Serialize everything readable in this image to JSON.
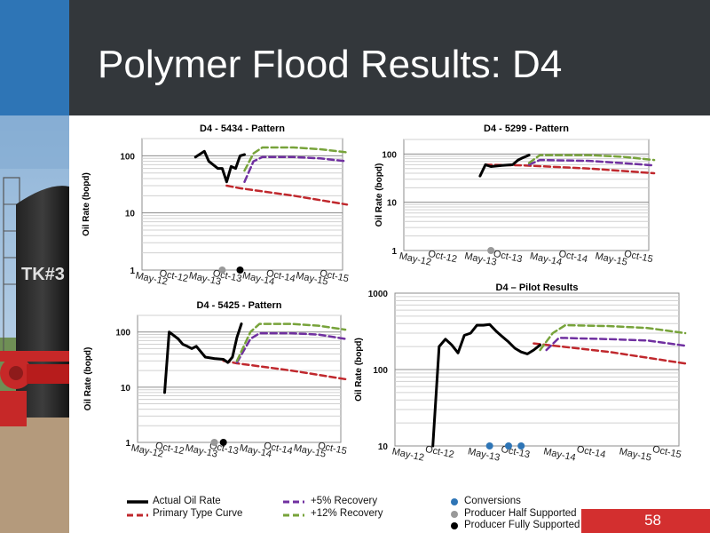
{
  "slide": {
    "title": "Polymer Flood Results: D4",
    "slide_number": "58",
    "photo_text": "TK#3"
  },
  "legend": {
    "actual": "Actual Oil Rate",
    "primary": "Primary Type Curve",
    "plus5": "+5% Recovery",
    "plus12": "+12% Recovery",
    "conversions": "Conversions",
    "half": "Producer Half Supported",
    "full": "Producer Fully Supported"
  },
  "colors": {
    "actual": "#000000",
    "primary": "#c0282d",
    "plus5": "#7030a0",
    "plus12": "#77a33a",
    "conversions": "#2e75b6",
    "half": "#999999",
    "full": "#000000",
    "accent_blue": "#2e75b6",
    "title_bar": "#33373b",
    "slide_number_bg": "#d32f2f"
  },
  "chart_data": [
    {
      "id": "c1",
      "type": "line",
      "title": "D4 - 5434 - Pattern",
      "ylabel": "Oil Rate (bopd)",
      "y_scale": "log",
      "ylim": [
        1,
        200
      ],
      "y_ticks": [
        "1",
        "10",
        "100"
      ],
      "x_ticks": [
        "May-12",
        "Oct-12",
        "May-13",
        "Oct-13",
        "May-14",
        "Oct-14",
        "May-15",
        "Oct-15"
      ],
      "xlim": [
        "Mar-12",
        "Dec-15"
      ],
      "series": [
        {
          "name": "Actual Oil Rate",
          "style": "actual",
          "x": [
            "Mar-13",
            "May-13",
            "Jun-13",
            "Aug-13",
            "Sep-13",
            "Oct-13",
            "Nov-13",
            "Dec-13",
            "Jan-14",
            "Feb-14"
          ],
          "y": [
            95,
            120,
            80,
            60,
            60,
            35,
            65,
            60,
            100,
            105
          ]
        },
        {
          "name": "Primary Type Curve",
          "style": "primary",
          "x": [
            "Oct-13",
            "Jan-14",
            "Jan-15",
            "Jan-16"
          ],
          "y": [
            30,
            27,
            20,
            14
          ]
        },
        {
          "name": "+5% Recovery",
          "style": "plus5",
          "x": [
            "Feb-14",
            "Apr-14",
            "Jun-14",
            "Jan-15",
            "Jul-15",
            "Jan-16"
          ],
          "y": [
            35,
            80,
            95,
            95,
            90,
            80
          ]
        },
        {
          "name": "+12% Recovery",
          "style": "plus12",
          "x": [
            "Feb-14",
            "Apr-14",
            "Jun-14",
            "Jan-15",
            "Jul-15",
            "Jan-16"
          ],
          "y": [
            55,
            110,
            140,
            140,
            130,
            115
          ]
        }
      ],
      "markers": [
        {
          "type": "half",
          "x": "Sep-13"
        },
        {
          "type": "full",
          "x": "Jan-14"
        }
      ]
    },
    {
      "id": "c2",
      "type": "line",
      "title": "D4 - 5299 - Pattern",
      "ylabel": "Oil Rate (bopd)",
      "y_scale": "log",
      "ylim": [
        1,
        200
      ],
      "y_ticks": [
        "1",
        "10",
        "100"
      ],
      "x_ticks": [
        "May-12",
        "Oct-12",
        "May-13",
        "Oct-13",
        "May-14",
        "Oct-14",
        "May-15",
        "Oct-15"
      ],
      "xlim": [
        "Mar-12",
        "Dec-15"
      ],
      "series": [
        {
          "name": "Actual Oil Rate",
          "style": "actual",
          "x": [
            "May-13",
            "Jun-13",
            "Jul-13",
            "Sep-13",
            "Nov-13",
            "Dec-13",
            "Jan-14",
            "Feb-14"
          ],
          "y": [
            35,
            60,
            55,
            58,
            60,
            75,
            85,
            95
          ]
        },
        {
          "name": "Primary Type Curve",
          "style": "primary",
          "x": [
            "Jun-13",
            "Jan-14",
            "Jan-15",
            "Jan-16"
          ],
          "y": [
            60,
            58,
            50,
            40
          ]
        },
        {
          "name": "+5% Recovery",
          "style": "plus5",
          "x": [
            "Feb-14",
            "Apr-14",
            "Jan-15",
            "Jul-15",
            "Jan-16"
          ],
          "y": [
            60,
            75,
            72,
            65,
            58
          ]
        },
        {
          "name": "+12% Recovery",
          "style": "plus12",
          "x": [
            "Feb-14",
            "Apr-14",
            "Jan-15",
            "Jul-15",
            "Jan-16"
          ],
          "y": [
            65,
            95,
            95,
            88,
            75
          ]
        }
      ],
      "markers": [
        {
          "type": "half",
          "x": "Jul-13"
        }
      ]
    },
    {
      "id": "c3",
      "type": "line",
      "title": "D4 - 5425 - Pattern",
      "ylabel": "Oil Rate (bopd)",
      "y_scale": "log",
      "ylim": [
        1,
        200
      ],
      "y_ticks": [
        "1",
        "10",
        "100"
      ],
      "x_ticks": [
        "May-12",
        "Oct-12",
        "May-13",
        "Oct-13",
        "May-14",
        "Oct-14",
        "May-15",
        "Oct-15"
      ],
      "xlim": [
        "Mar-12",
        "Dec-15"
      ],
      "series": [
        {
          "name": "Actual Oil Rate",
          "style": "actual",
          "x": [
            "Sep-12",
            "Oct-12",
            "Dec-12",
            "Jan-13",
            "Feb-13",
            "Mar-13",
            "Apr-13",
            "Jun-13",
            "Aug-13",
            "Oct-13",
            "Nov-13",
            "Dec-13",
            "Jan-14",
            "Feb-14"
          ],
          "y": [
            8,
            100,
            75,
            60,
            55,
            50,
            55,
            35,
            33,
            32,
            28,
            35,
            80,
            140
          ]
        },
        {
          "name": "Primary Type Curve",
          "style": "primary",
          "x": [
            "Oct-13",
            "Jan-14",
            "Jan-15",
            "Jan-16"
          ],
          "y": [
            30,
            27,
            20,
            14
          ]
        },
        {
          "name": "+5% Recovery",
          "style": "plus5",
          "x": [
            "Jan-14",
            "Apr-14",
            "Jun-14",
            "Jan-15",
            "Jul-15",
            "Jan-16"
          ],
          "y": [
            28,
            75,
            95,
            95,
            90,
            75
          ]
        },
        {
          "name": "+12% Recovery",
          "style": "plus12",
          "x": [
            "Jan-14",
            "Apr-14",
            "Jun-14",
            "Jan-15",
            "Jul-15",
            "Jan-16"
          ],
          "y": [
            30,
            100,
            140,
            140,
            130,
            110
          ]
        }
      ],
      "markers": [
        {
          "type": "half",
          "x": "Aug-13"
        },
        {
          "type": "full",
          "x": "Oct-13"
        }
      ]
    },
    {
      "id": "c4",
      "type": "line",
      "title": "D4 – Pilot Results",
      "ylabel": "Oil Rate (bopd)",
      "y_scale": "log",
      "ylim": [
        10,
        1000
      ],
      "y_ticks": [
        "10",
        "100",
        "1000"
      ],
      "x_ticks": [
        "May-12",
        "Oct-12",
        "May-13",
        "Oct-13",
        "May-14",
        "Oct-14",
        "May-15",
        "Oct-15"
      ],
      "xlim": [
        "Mar-12",
        "Dec-15"
      ],
      "series": [
        {
          "name": "Actual Oil Rate",
          "style": "actual",
          "x": [
            "Sep-12",
            "Oct-12",
            "Nov-12",
            "Dec-12",
            "Jan-13",
            "Feb-13",
            "Mar-13",
            "Apr-13",
            "May-13",
            "Jun-13",
            "Jul-13",
            "Aug-13",
            "Sep-13",
            "Oct-13",
            "Nov-13",
            "Dec-13",
            "Jan-14",
            "Feb-14"
          ],
          "y": [
            10,
            200,
            250,
            210,
            165,
            280,
            300,
            380,
            380,
            390,
            320,
            270,
            230,
            190,
            170,
            160,
            180,
            210
          ]
        },
        {
          "name": "Primary Type Curve",
          "style": "primary",
          "x": [
            "Jan-14",
            "Jan-15",
            "Jan-16"
          ],
          "y": [
            220,
            170,
            120
          ]
        },
        {
          "name": "+5% Recovery",
          "style": "plus5",
          "x": [
            "Mar-14",
            "May-14",
            "Jan-15",
            "Jul-15",
            "Jan-16"
          ],
          "y": [
            180,
            260,
            250,
            240,
            205
          ]
        },
        {
          "name": "+12% Recovery",
          "style": "plus12",
          "x": [
            "Feb-14",
            "Apr-14",
            "Jun-14",
            "Jan-15",
            "Jul-15",
            "Jan-16"
          ],
          "y": [
            180,
            300,
            380,
            370,
            350,
            300
          ]
        }
      ],
      "markers": [
        {
          "type": "conversion",
          "x": "Jun-13"
        },
        {
          "type": "conversion",
          "x": "Sep-13"
        },
        {
          "type": "conversion",
          "x": "Nov-13"
        }
      ]
    }
  ]
}
